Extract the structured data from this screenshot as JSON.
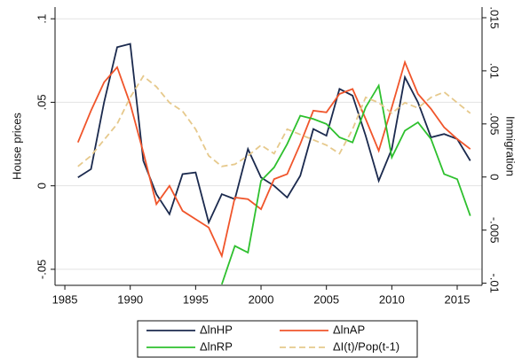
{
  "chart_data": {
    "type": "line",
    "x": [
      1986,
      1987,
      1988,
      1989,
      1990,
      1991,
      1992,
      1993,
      1994,
      1995,
      1996,
      1997,
      1998,
      1999,
      2000,
      2001,
      2002,
      2003,
      2004,
      2005,
      2006,
      2007,
      2008,
      2009,
      2010,
      2011,
      2012,
      2013,
      2014,
      2015,
      2016
    ],
    "series": [
      {
        "name": "ΔlnHP",
        "color": "#1b2a4e",
        "values": [
          0.005,
          0.01,
          0.05,
          0.083,
          0.085,
          0.015,
          -0.005,
          -0.017,
          0.007,
          0.008,
          -0.022,
          -0.005,
          -0.008,
          0.022,
          0.005,
          0.0,
          -0.007,
          0.006,
          0.034,
          0.03,
          0.058,
          0.054,
          0.03,
          0.003,
          0.022,
          0.065,
          0.05,
          0.029,
          0.031,
          0.028,
          0.015
        ]
      },
      {
        "name": "ΔlnAP",
        "color": "#f0552b",
        "values": [
          0.026,
          0.045,
          0.062,
          0.071,
          0.049,
          0.02,
          -0.011,
          0.0,
          -0.015,
          -0.02,
          -0.025,
          -0.042,
          -0.007,
          -0.008,
          -0.014,
          0.004,
          0.007,
          0.025,
          0.045,
          0.044,
          0.055,
          0.058,
          0.04,
          0.021,
          0.047,
          0.074,
          0.055,
          0.046,
          0.035,
          0.028,
          0.022
        ]
      },
      {
        "name": "ΔlnRP",
        "color": "#2ec02e",
        "values": [
          null,
          null,
          null,
          null,
          null,
          null,
          null,
          null,
          null,
          null,
          null,
          -0.059,
          -0.036,
          -0.04,
          0.003,
          0.011,
          0.025,
          0.042,
          0.04,
          0.037,
          0.029,
          0.026,
          0.047,
          0.06,
          0.017,
          0.033,
          0.038,
          0.028,
          0.007,
          0.004,
          -0.018
        ]
      },
      {
        "name": "ΔI(t)/Pop(t-1)",
        "color": "#e6c98c",
        "dash": true,
        "axis": "y2",
        "values": [
          0.001,
          0.002,
          0.0035,
          0.005,
          0.0075,
          0.0095,
          0.0085,
          0.007,
          0.0062,
          0.0045,
          0.002,
          0.001,
          0.0012,
          0.002,
          0.003,
          0.0022,
          0.0045,
          0.004,
          0.0035,
          0.003,
          0.0022,
          0.0045,
          0.0075,
          0.007,
          0.006,
          0.007,
          0.0065,
          0.0075,
          0.008,
          0.007,
          0.006
        ]
      }
    ],
    "ylabel": "House prices",
    "y2label": "Immigration",
    "xlim": [
      1984.25,
      2016.9
    ],
    "xticks": [
      1985,
      1990,
      1995,
      2000,
      2005,
      2010,
      2015
    ],
    "ylim": [
      -0.0596,
      0.107
    ],
    "yticks": [
      {
        "value": -0.05,
        "label": "-.05"
      },
      0,
      {
        "value": 0.05,
        "label": ".05"
      },
      {
        "value": 0.1,
        "label": ".1"
      }
    ],
    "y2lim": [
      -0.0102,
      0.016
    ],
    "y2ticks": [
      {
        "value": -0.01,
        "label": "-.01"
      },
      {
        "value": -0.005,
        "label": "-.005"
      },
      0,
      {
        "value": 0.005,
        "label": ".005"
      },
      {
        "value": 0.01,
        "label": ".01"
      },
      {
        "value": 0.015,
        "label": ".015"
      }
    ],
    "grid": true
  }
}
